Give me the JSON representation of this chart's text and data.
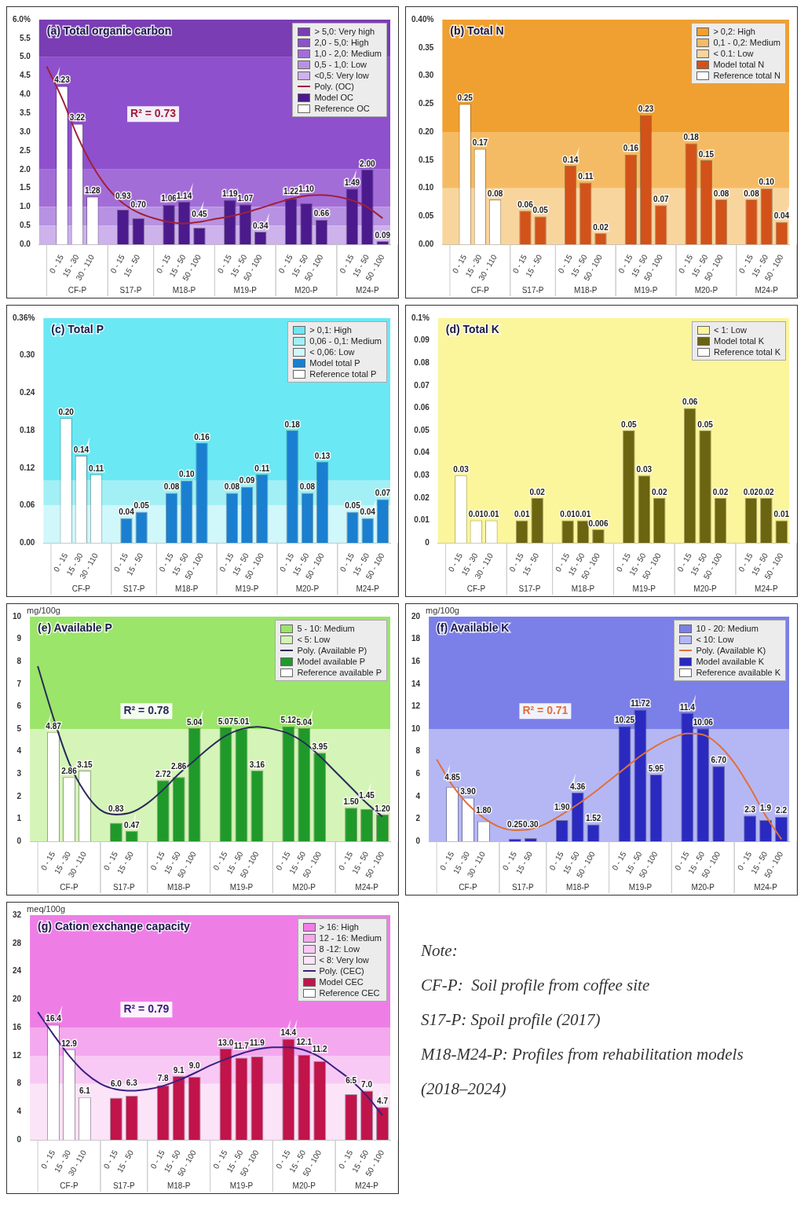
{
  "chart_data": [
    {
      "type": "bar",
      "title": "(a) Total organic carbon",
      "legend": "top right",
      "categories": [
        null,
        "0 - 15",
        "15 - 30",
        "30 - 110",
        null,
        "0 - 15",
        "15 - 50",
        null,
        "0 - 15",
        "15 - 50",
        "50 - 100",
        null,
        "0 - 15",
        "15 - 50",
        "50 - 100",
        null,
        "0 - 15",
        "15 - 50",
        "50 - 100",
        null,
        "0 - 15",
        "15 - 50",
        "50 - 100"
      ],
      "bands": [
        {
          "axis": "y",
          "from": 5,
          "to": 6,
          "label": "> 5,0: Very high",
          "color": "#7a3db3"
        },
        {
          "axis": "y",
          "from": 2,
          "to": 5,
          "label": "2,0 - 5,0: High",
          "color": "#8e50cc"
        },
        {
          "axis": "y",
          "from": 1,
          "to": 2,
          "label": "1,0 - 2,0: Medium",
          "color": "#a36dd8"
        },
        {
          "axis": "y",
          "from": 0.5,
          "to": 1,
          "label": "0,5 - 1,0: Low",
          "color": "#b892e2"
        },
        {
          "axis": "y",
          "from": 0,
          "to": 0.5,
          "label": "<0,5: Very low",
          "color": "#cdb2ec"
        }
      ],
      "series": [
        {
          "name": "Poly. (OC)",
          "type": "line",
          "color": "#a0203a",
          "values": [
            4.75,
            3.9,
            2.9,
            2.1,
            1.5,
            1.1,
            0.85,
            0.7,
            0.6,
            0.56,
            0.6,
            0.68,
            0.75,
            0.85,
            0.97,
            1.1,
            1.22,
            1.3,
            1.32,
            1.28,
            1.18,
            1.0,
            0.7
          ]
        },
        {
          "name": "Model OC",
          "color": "#4b1a8c",
          "values": [
            null,
            null,
            null,
            null,
            null,
            0.93,
            0.7,
            null,
            1.06,
            1.14,
            0.45,
            null,
            1.19,
            1.07,
            0.34,
            null,
            1.22,
            1.1,
            0.66,
            null,
            1.49,
            2.0,
            0.09
          ],
          "value_labels": [
            null,
            null,
            null,
            null,
            null,
            "0.93",
            "0.70",
            null,
            "1.06",
            "1.14",
            "0.45",
            null,
            "1.19",
            "1.07",
            "0.34",
            null,
            "1.22",
            "1.10",
            "0.66",
            null,
            "1.49",
            "2.00",
            "0.09"
          ]
        },
        {
          "name": "Reference OC",
          "color": "#ffffff",
          "values": [
            null,
            4.23,
            3.22,
            1.28,
            null,
            null,
            null,
            null,
            null,
            null,
            null,
            null,
            null,
            null,
            null,
            null,
            null,
            null,
            null,
            null,
            null,
            null,
            null
          ],
          "value_labels": [
            null,
            "4.23",
            "3.22",
            "1.28",
            null,
            null,
            null,
            null,
            null,
            null,
            null,
            null,
            null,
            null,
            null,
            null,
            null,
            null,
            null,
            null,
            null,
            null,
            null
          ]
        }
      ],
      "ylim": [
        0,
        6
      ],
      "yticks": [
        {
          "value": 0,
          "label": "0.0"
        },
        0.5,
        {
          "value": 1,
          "label": "1.0"
        },
        1.5,
        {
          "value": 2,
          "label": "2.0"
        },
        2.5,
        {
          "value": 3,
          "label": "3.0"
        },
        3.5,
        {
          "value": 4,
          "label": "4.0"
        },
        4.5,
        {
          "value": 5,
          "label": "5.0"
        },
        5.5,
        {
          "value": 6,
          "label": "6.0%"
        }
      ],
      "annotations": [
        "CF-P",
        "S17-P",
        "M18-P",
        "M19-P",
        "M20-P",
        "M24-P",
        "R² = 0.73"
      ]
    },
    {
      "type": "bar",
      "title": "(b) Total N",
      "legend": "top right",
      "categories": [
        null,
        "0 - 15",
        "15 - 30",
        "30 - 110",
        null,
        "0 - 15",
        "15 - 50",
        null,
        "0 - 15",
        "15 - 50",
        "50 - 100",
        null,
        "0 - 15",
        "15 - 50",
        "50 - 100",
        null,
        "0 - 15",
        "15 - 50",
        "50 - 100",
        null,
        "0 - 15",
        "15 - 50",
        "50 - 100"
      ],
      "bands": [
        {
          "axis": "y",
          "from": 0.2,
          "to": 0.4,
          "label": "> 0,2: High",
          "color": "#f0a030"
        },
        {
          "axis": "y",
          "from": 0.1,
          "to": 0.2,
          "label": "0,1 - 0,2: Medium",
          "color": "#f5bb64"
        },
        {
          "axis": "y",
          "from": 0,
          "to": 0.1,
          "label": "< 0.1: Low",
          "color": "#f9d59e"
        }
      ],
      "series": [
        {
          "name": "Model total N",
          "color": "#d2521a",
          "values": [
            null,
            null,
            null,
            null,
            null,
            0.06,
            0.05,
            null,
            0.14,
            0.11,
            0.02,
            null,
            0.16,
            0.23,
            0.07,
            null,
            0.18,
            0.15,
            0.08,
            null,
            0.08,
            0.1,
            0.04
          ],
          "value_labels": [
            null,
            null,
            null,
            null,
            null,
            "0.06",
            "0.05",
            null,
            "0.14",
            "0.11",
            "0.02",
            null,
            "0.16",
            "0.23",
            "0.07",
            null,
            "0.18",
            "0.15",
            "0.08",
            null,
            "0.08",
            "0.10",
            "0.04"
          ]
        },
        {
          "name": "Reference total N",
          "color": "#ffffff",
          "values": [
            null,
            0.25,
            0.17,
            0.08,
            null,
            null,
            null,
            null,
            null,
            null,
            null,
            null,
            null,
            null,
            null,
            null,
            null,
            null,
            null,
            null,
            null,
            null,
            null
          ],
          "value_labels": [
            null,
            "0.25",
            "0.17",
            "0.08",
            null,
            null,
            null,
            null,
            null,
            null,
            null,
            null,
            null,
            null,
            null,
            null,
            null,
            null,
            null,
            null,
            null,
            null,
            null
          ]
        }
      ],
      "ylim": [
        0,
        0.4
      ],
      "yticks": [
        {
          "value": 0,
          "label": "0.00"
        },
        0.05,
        {
          "value": 0.1,
          "label": "0.10"
        },
        0.15,
        {
          "value": 0.2,
          "label": "0.20"
        },
        0.25,
        {
          "value": 0.3,
          "label": "0.30"
        },
        0.35,
        {
          "value": 0.4,
          "label": "0.40%"
        }
      ],
      "annotations": [
        "CF-P",
        "S17-P",
        "M18-P",
        "M19-P",
        "M20-P",
        "M24-P"
      ]
    },
    {
      "type": "bar",
      "title": "(c) Total P",
      "legend": "top right",
      "categories": [
        null,
        "0 - 15",
        "15 - 30",
        "30 - 110",
        null,
        "0 - 15",
        "15 - 50",
        null,
        "0 - 15",
        "15 - 50",
        "50 - 100",
        null,
        "0 - 15",
        "15 - 50",
        "50 - 100",
        null,
        "0 - 15",
        "15 - 50",
        "50 - 100",
        null,
        "0 - 15",
        "15 - 50",
        "50 - 100"
      ],
      "bands": [
        {
          "axis": "y",
          "from": 0.1,
          "to": 0.36,
          "label": "> 0,1: High",
          "color": "#6ae8f4"
        },
        {
          "axis": "y",
          "from": 0.06,
          "to": 0.1,
          "label": "0,06 - 0,1: Medium",
          "color": "#a2f0f6"
        },
        {
          "axis": "y",
          "from": 0,
          "to": 0.06,
          "label": "< 0,06: Low",
          "color": "#d0f7fa"
        }
      ],
      "series": [
        {
          "name": "Model total P",
          "color": "#1a7fd0",
          "values": [
            null,
            null,
            null,
            null,
            null,
            0.04,
            0.05,
            null,
            0.08,
            0.1,
            0.16,
            null,
            0.08,
            0.09,
            0.11,
            null,
            0.18,
            0.08,
            0.13,
            null,
            0.05,
            0.04,
            0.07
          ],
          "value_labels": [
            null,
            null,
            null,
            null,
            null,
            "0.04",
            "0.05",
            null,
            "0.08",
            "0.10",
            "0.16",
            null,
            "0.08",
            "0.09",
            "0.11",
            null,
            "0.18",
            "0.08",
            "0.13",
            null,
            "0.05",
            "0.04",
            "0.07"
          ]
        },
        {
          "name": "Reference total P",
          "color": "#ffffff",
          "values": [
            null,
            0.2,
            0.14,
            0.11,
            null,
            null,
            null,
            null,
            null,
            null,
            null,
            null,
            null,
            null,
            null,
            null,
            null,
            null,
            null,
            null,
            null,
            null,
            null
          ],
          "value_labels": [
            null,
            "0.20",
            "0.14",
            "0.11",
            null,
            null,
            null,
            null,
            null,
            null,
            null,
            null,
            null,
            null,
            null,
            null,
            null,
            null,
            null,
            null,
            null,
            null,
            null
          ]
        }
      ],
      "ylim": [
        0,
        0.36
      ],
      "yticks": [
        {
          "value": 0,
          "label": "0.00"
        },
        0.06,
        0.12,
        0.18,
        0.24,
        {
          "value": 0.3,
          "label": "0.30"
        },
        {
          "value": 0.36,
          "label": "0.36%"
        }
      ],
      "annotations": [
        "CF-P",
        "S17-P",
        "M18-P",
        "M19-P",
        "M20-P",
        "M24-P"
      ]
    },
    {
      "type": "bar",
      "title": "(d) Total K",
      "legend": "top right",
      "categories": [
        null,
        "0 - 15",
        "15 - 30",
        "30 - 110",
        null,
        "0 - 15",
        "15 - 50",
        null,
        "0 - 15",
        "15 - 50",
        "50 - 100",
        null,
        "0 - 15",
        "15 - 50",
        "50 - 100",
        null,
        "0 - 15",
        "15 - 50",
        "50 - 100",
        null,
        "0 - 15",
        "15 - 50",
        "50 - 100"
      ],
      "bands": [
        {
          "axis": "y",
          "from": 0,
          "to": 0.1,
          "label": "< 1: Low",
          "color": "#fbf59c"
        }
      ],
      "series": [
        {
          "name": "Model total K",
          "color": "#6b6410",
          "values": [
            null,
            null,
            null,
            null,
            null,
            0.01,
            0.02,
            null,
            0.01,
            0.01,
            0.006,
            null,
            0.05,
            0.03,
            0.02,
            null,
            0.06,
            0.05,
            0.02,
            null,
            0.02,
            0.02,
            0.01
          ],
          "value_labels": [
            null,
            null,
            null,
            null,
            null,
            "0.01",
            "0.02",
            null,
            "0.01",
            "0.01",
            "0.006",
            null,
            "0.05",
            "0.03",
            "0.02",
            null,
            "0.06",
            "0.05",
            "0.02",
            null,
            "0.02",
            "0.02",
            "0.01"
          ]
        },
        {
          "name": "Reference total K",
          "color": "#ffffff",
          "values": [
            null,
            0.03,
            0.01,
            0.01,
            null,
            null,
            null,
            null,
            null,
            null,
            null,
            null,
            null,
            null,
            null,
            null,
            null,
            null,
            null,
            null,
            null,
            null,
            null
          ],
          "value_labels": [
            null,
            "0.03",
            "0.01",
            "0.01",
            null,
            null,
            null,
            null,
            null,
            null,
            null,
            null,
            null,
            null,
            null,
            null,
            null,
            null,
            null,
            null,
            null,
            null,
            null
          ]
        }
      ],
      "ylim": [
        0,
        0.1
      ],
      "yticks": [
        0,
        0.01,
        0.02,
        0.03,
        0.04,
        0.05,
        0.06,
        0.07,
        0.08,
        0.09,
        {
          "value": 0.1,
          "label": "0.1%"
        }
      ],
      "annotations": [
        "CF-P",
        "S17-P",
        "M18-P",
        "M19-P",
        "M20-P",
        "M24-P"
      ]
    },
    {
      "type": "bar",
      "title": "(e) Available P",
      "ylabel": "mg/100g",
      "legend": "top right",
      "categories": [
        null,
        "0 - 15",
        "15 - 30",
        "30 - 110",
        null,
        "0 - 15",
        "15 - 50",
        null,
        "0 - 15",
        "15 - 50",
        "50 - 100",
        null,
        "0 - 15",
        "15 - 50",
        "50 - 100",
        null,
        "0 - 15",
        "15 - 50",
        "50 - 100",
        null,
        "0 - 15",
        "15 - 50",
        "50 - 100"
      ],
      "bands": [
        {
          "axis": "y",
          "from": 5,
          "to": 10,
          "label": "5 - 10: Medium",
          "color": "#9be56a"
        },
        {
          "axis": "y",
          "from": 0,
          "to": 5,
          "label": "< 5: Low",
          "color": "#d5f4b8"
        }
      ],
      "series": [
        {
          "name": "Poly. (Available P)",
          "type": "line",
          "color": "#2a2a5a",
          "values": [
            7.8,
            5.5,
            3.5,
            2.2,
            1.4,
            1.2,
            1.3,
            1.7,
            2.3,
            3.0,
            3.6,
            4.2,
            4.7,
            5.0,
            5.1,
            5.0,
            4.8,
            4.4,
            3.8,
            3.1,
            2.4,
            1.7,
            1.1
          ]
        },
        {
          "name": "Model available P",
          "color": "#1f9a2a",
          "values": [
            null,
            null,
            null,
            null,
            null,
            0.83,
            0.47,
            null,
            2.72,
            2.86,
            5.04,
            null,
            5.07,
            5.01,
            3.16,
            null,
            5.12,
            5.04,
            3.95,
            null,
            1.5,
            1.45,
            1.2
          ],
          "value_labels": [
            null,
            null,
            null,
            null,
            null,
            "0.83",
            "0.47",
            null,
            "2.72",
            "2.86",
            "5.04",
            null,
            "5.07",
            "5.01",
            "3.16",
            null,
            "5.12",
            "5.04",
            "3.95",
            null,
            "1.50",
            "1.45",
            "1.20"
          ]
        },
        {
          "name": "Reference available P",
          "color": "#ffffff",
          "values": [
            null,
            4.87,
            2.86,
            3.15,
            null,
            null,
            null,
            null,
            null,
            null,
            null,
            null,
            null,
            null,
            null,
            null,
            null,
            null,
            null,
            null,
            null,
            null,
            null
          ],
          "value_labels": [
            null,
            "4.87",
            "2.86",
            "3.15",
            null,
            null,
            null,
            null,
            null,
            null,
            null,
            null,
            null,
            null,
            null,
            null,
            null,
            null,
            null,
            null,
            null,
            null,
            null
          ]
        }
      ],
      "ylim": [
        0,
        10
      ],
      "yticks": [
        0,
        1,
        2,
        3,
        4,
        5,
        6,
        7,
        8,
        9,
        10
      ],
      "annotations": [
        "CF-P",
        "S17-P",
        "M18-P",
        "M19-P",
        "M20-P",
        "M24-P",
        "R² = 0.78"
      ]
    },
    {
      "type": "bar",
      "title": "(f) Available K",
      "ylabel": "mg/100g",
      "legend": "top right",
      "categories": [
        null,
        "0 - 15",
        "15 - 30",
        "30 - 110",
        null,
        "0 - 15",
        "15 - 50",
        null,
        "0 - 15",
        "15 - 50",
        "50 - 100",
        null,
        "0 - 15",
        "15 - 50",
        "50 - 100",
        null,
        "0 - 15",
        "15 - 50",
        "50 - 100",
        null,
        "0 - 15",
        "15 - 50",
        "50 - 100"
      ],
      "bands": [
        {
          "axis": "y",
          "from": 10,
          "to": 20,
          "label": "10 - 20: Medium",
          "color": "#7b7fe8"
        },
        {
          "axis": "y",
          "from": 0,
          "to": 10,
          "label": "< 10: Low",
          "color": "#b5b7f4"
        }
      ],
      "series": [
        {
          "name": "Poly. (Available K)",
          "type": "line",
          "color": "#e0703a",
          "values": [
            7.3,
            5.0,
            3.3,
            2.1,
            1.3,
            1.0,
            1.1,
            1.6,
            2.4,
            3.3,
            4.3,
            5.4,
            6.5,
            7.6,
            8.5,
            9.2,
            9.6,
            9.5,
            8.6,
            7.0,
            4.8,
            2.3,
            0.2
          ]
        },
        {
          "name": "Model available K",
          "color": "#2a2ac0",
          "values": [
            null,
            null,
            null,
            null,
            null,
            0.25,
            0.3,
            null,
            1.9,
            4.36,
            1.52,
            null,
            10.25,
            11.72,
            5.95,
            null,
            11.4,
            10.06,
            6.7,
            null,
            2.3,
            1.9,
            2.2
          ],
          "value_labels": [
            null,
            null,
            null,
            null,
            null,
            "0.25",
            "0.30",
            null,
            "1.90",
            "4.36",
            "1.52",
            null,
            "10.25",
            "11.72",
            "5.95",
            null,
            "11.4",
            "10.06",
            "6.70",
            null,
            "2.3",
            "1.9",
            "2.2"
          ]
        },
        {
          "name": "Reference available K",
          "color": "#ffffff",
          "values": [
            null,
            4.85,
            3.9,
            1.8,
            null,
            null,
            null,
            null,
            null,
            null,
            null,
            null,
            null,
            null,
            null,
            null,
            null,
            null,
            null,
            null,
            null,
            null,
            null
          ],
          "value_labels": [
            null,
            "4.85",
            "3.90",
            "1.80",
            null,
            null,
            null,
            null,
            null,
            null,
            null,
            null,
            null,
            null,
            null,
            null,
            null,
            null,
            null,
            null,
            null,
            null,
            null
          ]
        }
      ],
      "ylim": [
        0,
        20
      ],
      "yticks": [
        0,
        2,
        4,
        6,
        8,
        10,
        12,
        14,
        16,
        18,
        20
      ],
      "annotations": [
        "CF-P",
        "S17-P",
        "M18-P",
        "M19-P",
        "M20-P",
        "M24-P",
        "R² = 0.71"
      ]
    },
    {
      "type": "bar",
      "title": "(g) Cation exchange capacity",
      "ylabel": "meq/100g",
      "legend": "top right",
      "categories": [
        null,
        "0 - 15",
        "15 - 30",
        "30 - 110",
        null,
        "0 - 15",
        "15 - 50",
        null,
        "0 - 15",
        "15 - 50",
        "50 - 100",
        null,
        "0 - 15",
        "15 - 50",
        "50 - 100",
        null,
        "0 - 15",
        "15 - 50",
        "50 - 100",
        null,
        "0 - 15",
        "15 - 50",
        "50 - 100"
      ],
      "bands": [
        {
          "axis": "y",
          "from": 16,
          "to": 32,
          "label": "> 16: High",
          "color": "#ee7ee6"
        },
        {
          "axis": "y",
          "from": 12,
          "to": 16,
          "label": "12 - 16: Medium",
          "color": "#f4a8ee"
        },
        {
          "axis": "y",
          "from": 8,
          "to": 12,
          "label": "8 -12: Low",
          "color": "#f8c9f4"
        },
        {
          "axis": "y",
          "from": 0,
          "to": 8,
          "label": "< 8: Very low",
          "color": "#fbe3f8"
        }
      ],
      "series": [
        {
          "name": "Poly. (CEC)",
          "type": "line",
          "color": "#3a2080",
          "values": [
            18.2,
            15.0,
            12.0,
            9.6,
            8.0,
            7.2,
            7.0,
            7.2,
            7.7,
            8.5,
            9.5,
            10.6,
            11.5,
            12.3,
            12.9,
            13.2,
            13.2,
            12.8,
            11.8,
            10.2,
            8.5,
            6.3,
            3.5
          ]
        },
        {
          "name": "Model CEC",
          "color": "#c0144a",
          "values": [
            null,
            null,
            null,
            null,
            null,
            6.0,
            6.3,
            null,
            7.8,
            9.1,
            9.0,
            null,
            13.0,
            11.7,
            11.9,
            null,
            14.4,
            12.1,
            11.2,
            null,
            6.5,
            7.0,
            4.7
          ],
          "value_labels": [
            null,
            null,
            null,
            null,
            null,
            "6.0",
            "6.3",
            null,
            "7.8",
            "9.1",
            "9.0",
            null,
            "13.0",
            "11.7",
            "11.9",
            null,
            "14.4",
            "12.1",
            "11.2",
            null,
            "6.5",
            "7.0",
            "4.7"
          ]
        },
        {
          "name": "Reference CEC",
          "color": "#ffffff",
          "values": [
            null,
            16.4,
            12.9,
            6.1,
            null,
            null,
            null,
            null,
            null,
            null,
            null,
            null,
            null,
            null,
            null,
            null,
            null,
            null,
            null,
            null,
            null,
            null,
            null
          ],
          "value_labels": [
            null,
            "16.4",
            "12.9",
            "6.1",
            null,
            null,
            null,
            null,
            null,
            null,
            null,
            null,
            null,
            null,
            null,
            null,
            null,
            null,
            null,
            null,
            null,
            null,
            null
          ]
        }
      ],
      "ylim": [
        0,
        32
      ],
      "yticks": [
        0,
        4,
        8,
        12,
        16,
        20,
        24,
        28,
        32
      ],
      "annotations": [
        "CF-P",
        "S17-P",
        "M18-P",
        "M19-P",
        "M20-P",
        "M24-P",
        "R² = 0.79"
      ]
    },
    {
      "type": "other",
      "title": "Note:",
      "annotations": [
        "CF-P:  Soil profile from coffee site",
        "S17-P: Spoil profile (2017)",
        "M18-M24-P: Profiles from rehabilitation models (2018–2024)"
      ]
    }
  ]
}
